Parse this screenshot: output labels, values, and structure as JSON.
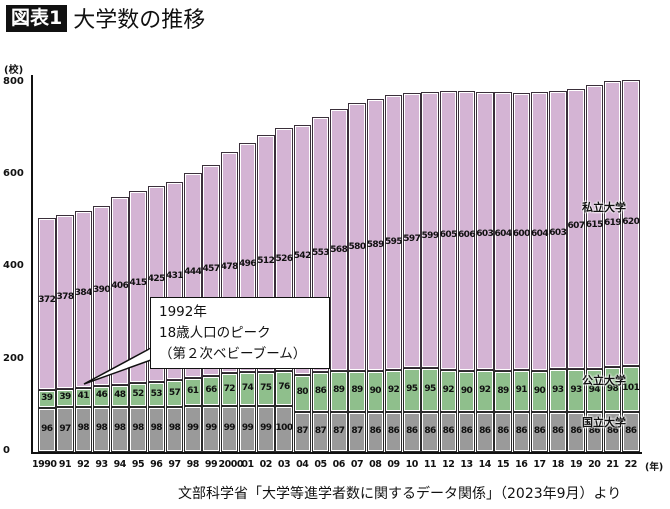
{
  "header": {
    "badge": "図表1",
    "title": "大学数の推移"
  },
  "chart_data": {
    "type": "bar",
    "stacked": true,
    "title": "図表1 大学数の推移",
    "ylabel": "(校)",
    "xlabel": "(年)",
    "ylim": [
      0,
      800
    ],
    "yticks": [
      "0",
      "200",
      "400",
      "600",
      "800"
    ],
    "grid": false,
    "categories": [
      "1990",
      "91",
      "92",
      "93",
      "94",
      "95",
      "96",
      "97",
      "98",
      "99",
      "2000",
      "01",
      "02",
      "03",
      "04",
      "05",
      "06",
      "07",
      "08",
      "09",
      "10",
      "11",
      "12",
      "13",
      "14",
      "15",
      "16",
      "17",
      "18",
      "19",
      "20",
      "21",
      "22"
    ],
    "series": [
      {
        "name": "国立大学",
        "color": "#9a9a9a",
        "values": [
          96,
          97,
          98,
          98,
          98,
          98,
          98,
          98,
          99,
          99,
          99,
          99,
          99,
          100,
          87,
          87,
          87,
          87,
          86,
          86,
          86,
          86,
          86,
          86,
          86,
          86,
          86,
          86,
          86,
          86,
          86,
          86,
          86
        ]
      },
      {
        "name": "公立大学",
        "color": "#8fbf8c",
        "values": [
          39,
          39,
          41,
          46,
          48,
          52,
          53,
          57,
          61,
          66,
          72,
          74,
          75,
          76,
          80,
          86,
          89,
          89,
          90,
          92,
          95,
          95,
          92,
          90,
          92,
          89,
          91,
          90,
          93,
          93,
          94,
          98,
          101
        ]
      },
      {
        "name": "私立大学",
        "color": "#d4b4d4",
        "values": [
          372,
          378,
          384,
          390,
          406,
          415,
          425,
          431,
          444,
          457,
          478,
          496,
          512,
          526,
          542,
          553,
          568,
          580,
          589,
          595,
          597,
          599,
          605,
          606,
          603,
          604,
          600,
          604,
          603,
          607,
          615,
          619,
          620
        ]
      }
    ],
    "legend": {
      "private": "私立大学",
      "public": "公立大学",
      "national": "国立大学"
    },
    "annotation": [
      "1992年",
      "18歳人口のピーク",
      "（第２次ベビーブーム）"
    ]
  },
  "source": "文部科学省「大学等進学者数に関するデータ関係」（2023年9月）より"
}
